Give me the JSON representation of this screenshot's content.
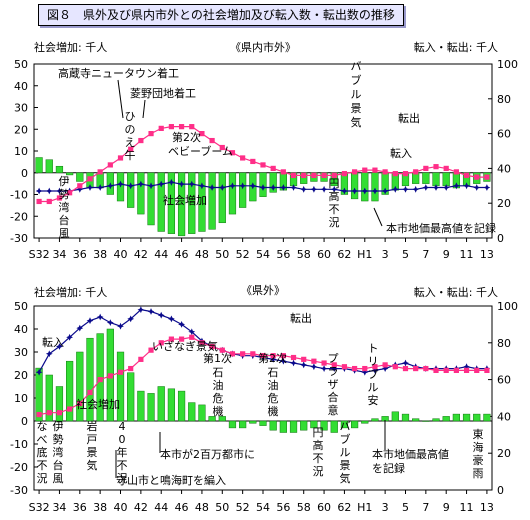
{
  "figure_title": "図８　県外及び県内市外との社会増加及び転入数・転出数の推移",
  "chart_data": [
    {
      "type": "bar",
      "title": "《県内市外》",
      "left_axis_label": "社会増加: 千人",
      "right_axis_label": "転入・転出: 千人",
      "ylim_left": [
        -30,
        50
      ],
      "ylim_right": [
        0,
        100
      ],
      "left_ticks": [
        "50",
        "40",
        "30",
        "20",
        "10",
        "0",
        "-10",
        "-20",
        "-30"
      ],
      "right_ticks": [
        "100",
        "80",
        "60",
        "40",
        "20",
        "0"
      ],
      "x_ticks": [
        "S32",
        "34",
        "36",
        "38",
        "40",
        "42",
        "44",
        "46",
        "48",
        "50",
        "52",
        "54",
        "56",
        "58",
        "60",
        "62",
        "H1",
        "3",
        "5",
        "7",
        "9",
        "11",
        "13"
      ],
      "series": [
        {
          "name": "社会増加",
          "kind": "bar",
          "values": [
            7,
            6,
            3,
            -1,
            -4,
            -7,
            -7,
            -10,
            -13,
            -16,
            -19,
            -24,
            -27,
            -28,
            -29,
            -28,
            -27,
            -26,
            -23,
            -19,
            -16,
            -13,
            -11,
            -9,
            -8,
            -6,
            -5,
            -4,
            -4,
            -6,
            -10,
            -12,
            -13,
            -13,
            -10,
            -8,
            -6,
            -5,
            -5,
            -6,
            -6,
            -7,
            -6,
            -5,
            -4
          ]
        },
        {
          "name": "転入",
          "kind": "line",
          "axis": "right",
          "values": [
            27,
            27,
            27,
            27,
            28,
            29,
            29,
            30,
            31,
            30,
            31,
            30,
            31,
            32,
            31,
            31,
            30,
            29,
            29,
            30,
            30,
            30,
            29,
            29,
            29,
            29,
            28,
            28,
            28,
            28,
            27,
            27,
            27,
            27,
            27,
            28,
            28,
            28,
            29,
            29,
            29,
            30,
            30,
            29,
            29
          ]
        },
        {
          "name": "転出",
          "kind": "line",
          "axis": "right",
          "values": [
            21,
            21,
            23,
            26,
            30,
            34,
            38,
            42,
            46,
            51,
            56,
            60,
            63,
            64,
            64,
            64,
            60,
            56,
            52,
            49,
            46,
            44,
            42,
            40,
            38,
            36,
            36,
            36,
            36,
            36,
            37,
            38,
            39,
            39,
            38,
            37,
            37,
            38,
            40,
            41,
            40,
            38,
            36,
            35,
            35
          ]
        }
      ],
      "annotations": [
        "高蔵寺ニュータウン着工",
        "菱野団地着工",
        "ひのえ午",
        "第2次ベビーブーム",
        "バブル景気",
        "転出",
        "転入",
        "伊勢湾台風",
        "社会増加",
        "円高不況",
        "本市地価最高値を記録"
      ]
    },
    {
      "type": "bar",
      "title": "《県外》",
      "left_axis_label": "社会増加: 千人",
      "right_axis_label": "転入・転出: 千人",
      "ylim_left": [
        -30,
        50
      ],
      "ylim_right": [
        0,
        100
      ],
      "left_ticks": [
        "50",
        "40",
        "30",
        "20",
        "10",
        "0",
        "-10",
        "-20",
        "-30"
      ],
      "right_ticks": [
        "100",
        "80",
        "60",
        "40",
        "20",
        "0"
      ],
      "x_ticks": [
        "S32",
        "34",
        "36",
        "38",
        "40",
        "42",
        "44",
        "46",
        "48",
        "50",
        "52",
        "54",
        "56",
        "58",
        "60",
        "62",
        "H1",
        "3",
        "5",
        "7",
        "9",
        "11",
        "13"
      ],
      "series": [
        {
          "name": "社会増加",
          "kind": "bar",
          "values": [
            23,
            20,
            15,
            26,
            30,
            36,
            38,
            40,
            30,
            21,
            13,
            12,
            15,
            14,
            13,
            8,
            7,
            2,
            2,
            -3,
            -3,
            -1,
            -2,
            -4,
            -5,
            -5,
            -4,
            -3,
            -4,
            -5,
            -3,
            -3,
            -1,
            1,
            2,
            4,
            3,
            1,
            0,
            1,
            2,
            3,
            3,
            3,
            3
          ]
        },
        {
          "name": "転入",
          "kind": "line",
          "axis": "right",
          "values": [
            64,
            74,
            78,
            83,
            88,
            92,
            94,
            91,
            89,
            93,
            98,
            97,
            95,
            93,
            90,
            86,
            81,
            78,
            76,
            74,
            73,
            73,
            72,
            71,
            70,
            69,
            68,
            67,
            66,
            66,
            66,
            65,
            64,
            65,
            66,
            68,
            69,
            67,
            66,
            66,
            66,
            66,
            67,
            66,
            66
          ]
        },
        {
          "name": "転出",
          "kind": "line",
          "axis": "right",
          "values": [
            41,
            42,
            42,
            44,
            47,
            53,
            60,
            62,
            64,
            66,
            71,
            76,
            80,
            82,
            82,
            83,
            80,
            78,
            76,
            74,
            74,
            74,
            73,
            73,
            73,
            72,
            71,
            70,
            69,
            68,
            67,
            66,
            66,
            67,
            68,
            67,
            66,
            66,
            66,
            65,
            65,
            65,
            65,
            65,
            65
          ]
        }
      ],
      "annotations": [
        "転入",
        "いざなぎ景気",
        "転出",
        "第1次石油危機",
        "第2次石油危機",
        "プラザ合意",
        "トリプル安",
        "伊勢湾台風",
        "なべ底不況",
        "岩戸景気",
        "40年不況",
        "社会増加",
        "本市が2百万都市に",
        "守山市と鳴海町を編入",
        "円高不況",
        "バブル景気",
        "本市地価最高値を記録",
        "東海豪雨"
      ]
    }
  ]
}
